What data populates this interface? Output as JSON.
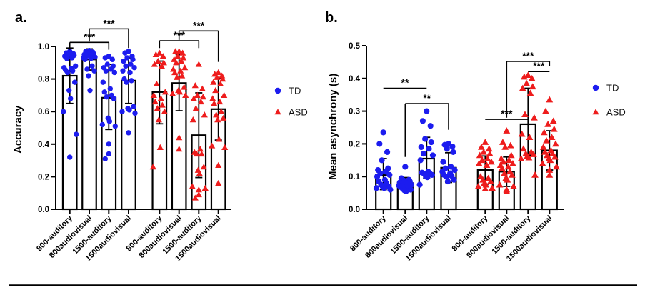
{
  "figure": {
    "background": "#ffffff",
    "panel_a_letter": "a.",
    "panel_b_letter": "b.",
    "bottom_rule": true
  },
  "legend": {
    "td_label": "TD",
    "asd_label": "ASD",
    "td_marker": "circle",
    "asd_marker": "triangle"
  },
  "colors": {
    "td": "#1c1cef",
    "asd": "#ee1c1c",
    "axis": "#000000",
    "bar_fill": "#ffffff",
    "bar_stroke": "#000000"
  },
  "chart_data": [
    {
      "panel": "a",
      "type": "bar",
      "subtype": "bar-with-scatter-and-error-bars",
      "ylabel": "Accuracy",
      "xlabel": "",
      "ylim": [
        0.0,
        1.0
      ],
      "yticks": [
        "0.0",
        "0.2",
        "0.4",
        "0.6",
        "0.8",
        "1.0"
      ],
      "grid": false,
      "legend_position": "right",
      "categories": [
        "800-auditory",
        "800audiovisual",
        "1500-auditory",
        "1500audiovisual",
        "800-auditory",
        "800audiovisual",
        "1500-auditory",
        "1500audiovisual"
      ],
      "bars": [
        {
          "group": "TD",
          "category": "800-auditory",
          "mean": 0.82,
          "err_low": 0.65,
          "err_high": 0.99,
          "points": [
            0.97,
            0.96,
            0.955,
            0.95,
            0.945,
            0.94,
            0.93,
            0.925,
            0.88,
            0.87,
            0.865,
            0.855,
            0.85,
            0.84,
            0.78,
            0.73,
            0.68,
            0.6,
            0.46,
            0.32
          ]
        },
        {
          "group": "TD",
          "category": "800audiovisual",
          "mean": 0.92,
          "err_low": 0.855,
          "err_high": 0.985,
          "points": [
            0.975,
            0.97,
            0.965,
            0.96,
            0.955,
            0.95,
            0.945,
            0.94,
            0.935,
            0.93,
            0.925,
            0.92,
            0.88,
            0.86,
            0.85,
            0.82,
            0.73
          ]
        },
        {
          "group": "TD",
          "category": "1500-auditory",
          "mean": 0.685,
          "err_low": 0.49,
          "err_high": 0.89,
          "points": [
            0.94,
            0.93,
            0.92,
            0.89,
            0.88,
            0.87,
            0.86,
            0.85,
            0.84,
            0.78,
            0.74,
            0.72,
            0.7,
            0.69,
            0.68,
            0.56,
            0.54,
            0.52,
            0.51,
            0.4,
            0.34,
            0.31
          ]
        },
        {
          "group": "TD",
          "category": "1500audiovisual",
          "mean": 0.79,
          "err_low": 0.65,
          "err_high": 0.93,
          "points": [
            0.97,
            0.96,
            0.94,
            0.93,
            0.92,
            0.91,
            0.89,
            0.88,
            0.87,
            0.85,
            0.84,
            0.8,
            0.79,
            0.78,
            0.63,
            0.62,
            0.61,
            0.6,
            0.59,
            0.47
          ]
        },
        {
          "group": "ASD",
          "category": "800-auditory",
          "mean": 0.72,
          "err_low": 0.525,
          "err_high": 0.91,
          "points": [
            0.96,
            0.95,
            0.94,
            0.91,
            0.9,
            0.89,
            0.88,
            0.77,
            0.72,
            0.7,
            0.68,
            0.66,
            0.64,
            0.62,
            0.6,
            0.55,
            0.38,
            0.26
          ]
        },
        {
          "group": "ASD",
          "category": "800audiovisual",
          "mean": 0.775,
          "err_low": 0.605,
          "err_high": 0.95,
          "points": [
            0.97,
            0.97,
            0.96,
            0.94,
            0.93,
            0.92,
            0.91,
            0.9,
            0.87,
            0.86,
            0.85,
            0.84,
            0.82,
            0.81,
            0.75,
            0.73,
            0.72,
            0.71,
            0.7,
            0.44,
            0.37
          ]
        },
        {
          "group": "ASD",
          "category": "1500-auditory",
          "mean": 0.455,
          "err_low": 0.195,
          "err_high": 0.715,
          "points": [
            0.89,
            0.76,
            0.74,
            0.7,
            0.69,
            0.68,
            0.66,
            0.62,
            0.58,
            0.55,
            0.37,
            0.35,
            0.34,
            0.34,
            0.26,
            0.24,
            0.22,
            0.14,
            0.13,
            0.12,
            0.09,
            0.07
          ]
        },
        {
          "group": "ASD",
          "category": "1500audiovisual",
          "mean": 0.615,
          "err_low": 0.425,
          "err_high": 0.805,
          "points": [
            0.84,
            0.83,
            0.82,
            0.81,
            0.8,
            0.78,
            0.77,
            0.73,
            0.7,
            0.68,
            0.66,
            0.65,
            0.6,
            0.58,
            0.56,
            0.55,
            0.43,
            0.39,
            0.38,
            0.27,
            0.16
          ]
        }
      ],
      "significance": [
        {
          "from": 0,
          "to": 2,
          "label": "***",
          "y": 1.025,
          "drop_from": 0.98,
          "drop_to": 0.98
        },
        {
          "from": 1,
          "to": 3,
          "label": "***",
          "y": 1.108,
          "drop_from": 1.03,
          "drop_to": 0.99
        },
        {
          "from": 4,
          "to": 6,
          "label": "***",
          "y": 1.035,
          "drop_from": 0.99,
          "drop_to": 0.99
        },
        {
          "from": 5,
          "to": 7,
          "label": "***",
          "y": 1.095,
          "drop_from": 1.04,
          "drop_to": 0.905
        }
      ]
    },
    {
      "panel": "b",
      "type": "bar",
      "subtype": "bar-with-scatter-and-error-bars",
      "ylabel": "Mean asynchrony (s)",
      "xlabel": "",
      "ylim": [
        0.0,
        0.5
      ],
      "yticks": [
        "0.0",
        "0.1",
        "0.2",
        "0.3",
        "0.4",
        "0.5"
      ],
      "grid": false,
      "legend_position": "right",
      "categories": [
        "800-auditory",
        "800audiovisual",
        "1500-auditory",
        "1500audiovisual",
        "800-auditory",
        "800audiovisual",
        "1500-auditory",
        "1500audiovisual"
      ],
      "bars": [
        {
          "group": "TD",
          "category": "800-auditory",
          "mean": 0.105,
          "err_low": 0.06,
          "err_high": 0.155,
          "points": [
            0.235,
            0.2,
            0.175,
            0.15,
            0.125,
            0.12,
            0.115,
            0.11,
            0.105,
            0.1,
            0.09,
            0.085,
            0.08,
            0.075,
            0.07,
            0.07,
            0.065,
            0.065,
            0.06
          ]
        },
        {
          "group": "TD",
          "category": "800audiovisual",
          "mean": 0.08,
          "err_low": 0.062,
          "err_high": 0.097,
          "points": [
            0.13,
            0.095,
            0.09,
            0.088,
            0.085,
            0.082,
            0.08,
            0.078,
            0.075,
            0.072,
            0.07,
            0.068,
            0.065,
            0.062,
            0.06,
            0.058,
            0.055
          ]
        },
        {
          "group": "TD",
          "category": "1500-auditory",
          "mean": 0.155,
          "err_low": 0.095,
          "err_high": 0.22,
          "points": [
            0.3,
            0.27,
            0.255,
            0.215,
            0.205,
            0.19,
            0.185,
            0.17,
            0.165,
            0.15,
            0.115,
            0.112,
            0.11,
            0.108,
            0.105,
            0.1,
            0.098,
            0.075
          ]
        },
        {
          "group": "TD",
          "category": "1500audiovisual",
          "mean": 0.127,
          "err_low": 0.082,
          "err_high": 0.173,
          "points": [
            0.2,
            0.197,
            0.192,
            0.185,
            0.175,
            0.145,
            0.13,
            0.125,
            0.12,
            0.115,
            0.11,
            0.105,
            0.102,
            0.1,
            0.09,
            0.085
          ]
        },
        {
          "group": "ASD",
          "category": "800-auditory",
          "mean": 0.12,
          "err_low": 0.077,
          "err_high": 0.163,
          "points": [
            0.205,
            0.19,
            0.185,
            0.175,
            0.17,
            0.165,
            0.155,
            0.15,
            0.145,
            0.14,
            0.135,
            0.1,
            0.095,
            0.09,
            0.085,
            0.08,
            0.075,
            0.07,
            0.065,
            0.063
          ]
        },
        {
          "group": "ASD",
          "category": "800audiovisual",
          "mean": 0.115,
          "err_low": 0.07,
          "err_high": 0.16,
          "points": [
            0.24,
            0.205,
            0.195,
            0.19,
            0.165,
            0.155,
            0.15,
            0.145,
            0.14,
            0.135,
            0.13,
            0.125,
            0.115,
            0.11,
            0.105,
            0.095,
            0.09,
            0.075,
            0.07,
            0.06,
            0.055
          ]
        },
        {
          "group": "ASD",
          "category": "1500-auditory",
          "mean": 0.26,
          "err_low": 0.165,
          "err_high": 0.37,
          "points": [
            0.41,
            0.405,
            0.4,
            0.385,
            0.375,
            0.37,
            0.355,
            0.29,
            0.28,
            0.23,
            0.22,
            0.185,
            0.175,
            0.17,
            0.168,
            0.163,
            0.158,
            0.155,
            0.105
          ]
        },
        {
          "group": "ASD",
          "category": "1500audiovisual",
          "mean": 0.18,
          "err_low": 0.12,
          "err_high": 0.24,
          "points": [
            0.335,
            0.3,
            0.27,
            0.26,
            0.245,
            0.235,
            0.22,
            0.21,
            0.2,
            0.19,
            0.18,
            0.175,
            0.17,
            0.165,
            0.16,
            0.155,
            0.15,
            0.14,
            0.13,
            0.12,
            0.105
          ]
        }
      ],
      "significance": [
        {
          "from": 0,
          "to": 2,
          "label": "**",
          "y": 0.37,
          "drop_from": null,
          "drop_to": null
        },
        {
          "from": 1,
          "to": 3,
          "label": "**",
          "y": 0.323,
          "drop_from": 0.16,
          "drop_to": 0.243
        },
        {
          "from": 4,
          "to": 6,
          "label": "***",
          "y": 0.275,
          "drop_from": null,
          "drop_to": null
        },
        {
          "from": 6,
          "to": 7,
          "label": "***",
          "y": 0.421,
          "drop_from": null,
          "drop_to": null
        },
        {
          "from": 5,
          "to": 7,
          "label": "***",
          "y": 0.452,
          "drop_from": 0.28,
          "drop_to": 0.437
        }
      ]
    }
  ]
}
